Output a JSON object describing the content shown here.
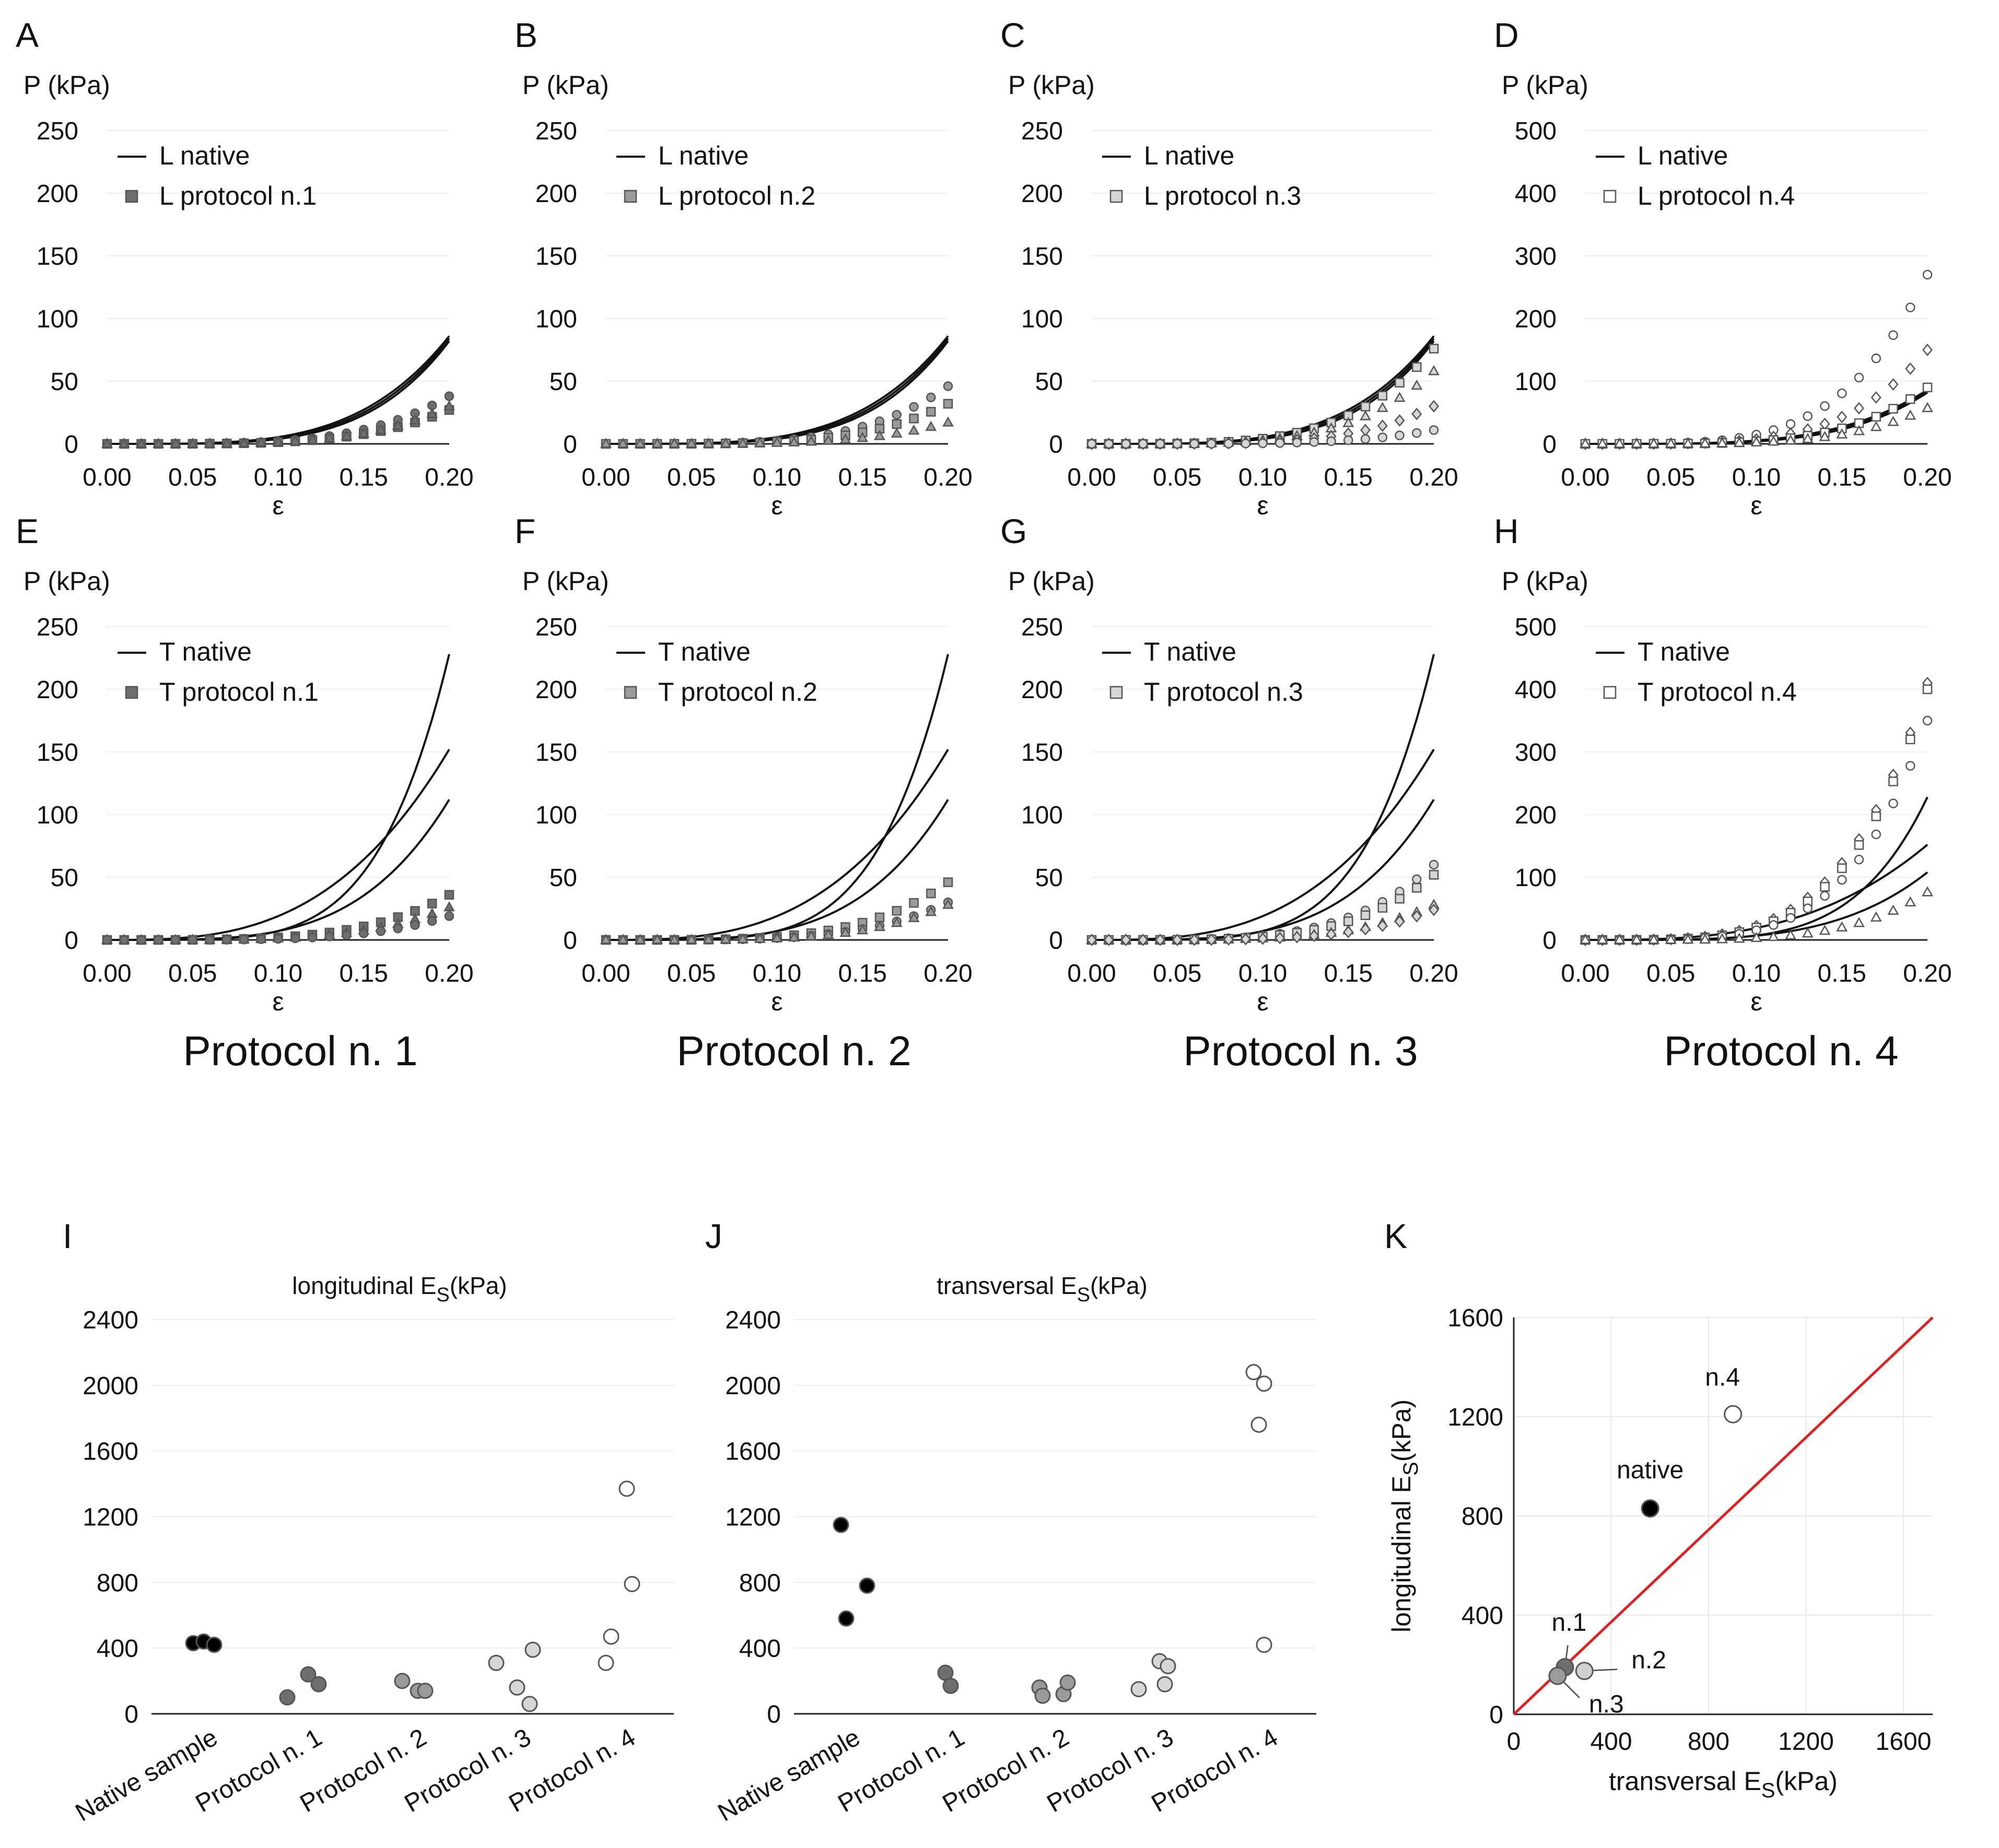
{
  "figure": {
    "protocol_labels": [
      "Protocol n. 1",
      "Protocol n. 2",
      "Protocol n. 3",
      "Protocol n. 4"
    ]
  },
  "chart_data": [
    {
      "id": "A",
      "type": "line",
      "panel_label": "A",
      "ylabel": "P (kPa)",
      "xlabel": "ε",
      "ylim": [
        0,
        250
      ],
      "yticks": [
        0,
        50,
        100,
        150,
        200,
        250
      ],
      "xlim": [
        0,
        0.2
      ],
      "xticks": [
        "0.00",
        "0.05",
        "0.10",
        "0.15",
        "0.20"
      ],
      "legend": [
        "L native",
        "L protocol n.1"
      ],
      "marker_fill": "#6f6f6f",
      "curves": [
        {
          "endpoint": 86,
          "power": 4
        },
        {
          "endpoint": 84,
          "power": 4.2
        },
        {
          "endpoint": 82,
          "power": 4.4
        }
      ],
      "point_series": [
        {
          "shape": "circle",
          "end": 38
        },
        {
          "shape": "square",
          "end": 27
        },
        {
          "shape": "triangle",
          "end": 30
        }
      ]
    },
    {
      "id": "B",
      "type": "line",
      "panel_label": "B",
      "ylabel": "P (kPa)",
      "xlabel": "ε",
      "ylim": [
        0,
        250
      ],
      "yticks": [
        0,
        50,
        100,
        150,
        200,
        250
      ],
      "xlim": [
        0,
        0.2
      ],
      "xticks": [
        "0.00",
        "0.05",
        "0.10",
        "0.15",
        "0.20"
      ],
      "legend": [
        "L native",
        "L protocol n.2"
      ],
      "marker_fill": "#9a9a9a",
      "curves": [
        {
          "endpoint": 86,
          "power": 4
        },
        {
          "endpoint": 84,
          "power": 4.2
        },
        {
          "endpoint": 82,
          "power": 4.4
        }
      ],
      "point_series": [
        {
          "shape": "circle",
          "end": 46
        },
        {
          "shape": "square",
          "end": 32
        },
        {
          "shape": "triangle",
          "end": 17
        }
      ]
    },
    {
      "id": "C",
      "type": "line",
      "panel_label": "C",
      "ylabel": "P (kPa)",
      "xlabel": "ε",
      "ylim": [
        0,
        250
      ],
      "yticks": [
        0,
        50,
        100,
        150,
        200,
        250
      ],
      "xlim": [
        0,
        0.2
      ],
      "xticks": [
        "0.00",
        "0.05",
        "0.10",
        "0.15",
        "0.20"
      ],
      "legend": [
        "L native",
        "L protocol n.3"
      ],
      "marker_fill": "#d6d6d6",
      "curves": [
        {
          "endpoint": 86,
          "power": 4
        },
        {
          "endpoint": 84,
          "power": 4.2
        },
        {
          "endpoint": 82,
          "power": 4.4
        }
      ],
      "point_series": [
        {
          "shape": "square",
          "end": 76
        },
        {
          "shape": "triangle",
          "end": 58
        },
        {
          "shape": "diamond",
          "end": 30
        },
        {
          "shape": "circle",
          "end": 11
        }
      ]
    },
    {
      "id": "D",
      "type": "line",
      "panel_label": "D",
      "ylabel": "P (kPa)",
      "xlabel": "ε",
      "ylim": [
        0,
        500
      ],
      "yticks": [
        0,
        100,
        200,
        300,
        400,
        500
      ],
      "xlim": [
        0,
        0.2
      ],
      "xticks": [
        "0.00",
        "0.05",
        "0.10",
        "0.15",
        "0.20"
      ],
      "legend": [
        "L native",
        "L protocol n.4"
      ],
      "marker_fill": "#ffffff",
      "curves": [
        {
          "endpoint": 86,
          "power": 4
        },
        {
          "endpoint": 84,
          "power": 4.2
        },
        {
          "endpoint": 82,
          "power": 4.4
        }
      ],
      "point_series": [
        {
          "shape": "circle",
          "end": 270
        },
        {
          "shape": "diamond",
          "end": 150
        },
        {
          "shape": "square",
          "end": 90
        },
        {
          "shape": "triangle",
          "end": 57
        }
      ]
    },
    {
      "id": "E",
      "type": "line",
      "panel_label": "E",
      "ylabel": "P (kPa)",
      "xlabel": "ε",
      "ylim": [
        0,
        250
      ],
      "yticks": [
        0,
        50,
        100,
        150,
        200,
        250
      ],
      "xlim": [
        0,
        0.2
      ],
      "xticks": [
        "0.00",
        "0.05",
        "0.10",
        "0.15",
        "0.20"
      ],
      "legend": [
        "T native",
        "T protocol n.1"
      ],
      "marker_fill": "#6f6f6f",
      "curves": [
        {
          "endpoint": 228,
          "power": 5
        },
        {
          "endpoint": 152,
          "power": 3
        },
        {
          "endpoint": 112,
          "power": 4
        }
      ],
      "point_series": [
        {
          "shape": "square",
          "end": 36
        },
        {
          "shape": "triangle",
          "end": 26
        },
        {
          "shape": "circle",
          "end": 19
        }
      ]
    },
    {
      "id": "F",
      "type": "line",
      "panel_label": "F",
      "ylabel": "P (kPa)",
      "xlabel": "ε",
      "ylim": [
        0,
        250
      ],
      "yticks": [
        0,
        50,
        100,
        150,
        200,
        250
      ],
      "xlim": [
        0,
        0.2
      ],
      "xticks": [
        "0.00",
        "0.05",
        "0.10",
        "0.15",
        "0.20"
      ],
      "legend": [
        "T native",
        "T protocol n.2"
      ],
      "marker_fill": "#9a9a9a",
      "curves": [
        {
          "endpoint": 228,
          "power": 5
        },
        {
          "endpoint": 152,
          "power": 3
        },
        {
          "endpoint": 112,
          "power": 4
        }
      ],
      "point_series": [
        {
          "shape": "square",
          "end": 46
        },
        {
          "shape": "circle",
          "end": 30
        },
        {
          "shape": "triangle",
          "end": 28
        }
      ]
    },
    {
      "id": "G",
      "type": "line",
      "panel_label": "G",
      "ylabel": "P (kPa)",
      "xlabel": "ε",
      "ylim": [
        0,
        250
      ],
      "yticks": [
        0,
        50,
        100,
        150,
        200,
        250
      ],
      "xlim": [
        0,
        0.2
      ],
      "xticks": [
        "0.00",
        "0.05",
        "0.10",
        "0.15",
        "0.20"
      ],
      "legend": [
        "T native",
        "T protocol n.3"
      ],
      "marker_fill": "#d6d6d6",
      "curves": [
        {
          "endpoint": 228,
          "power": 5
        },
        {
          "endpoint": 152,
          "power": 3
        },
        {
          "endpoint": 112,
          "power": 4
        }
      ],
      "point_series": [
        {
          "shape": "circle",
          "end": 60
        },
        {
          "shape": "square",
          "end": 52
        },
        {
          "shape": "triangle",
          "end": 28
        },
        {
          "shape": "diamond",
          "end": 24
        }
      ]
    },
    {
      "id": "H",
      "type": "line",
      "panel_label": "H",
      "ylabel": "P (kPa)",
      "xlabel": "ε",
      "ylim": [
        0,
        500
      ],
      "yticks": [
        0,
        100,
        200,
        300,
        400,
        500
      ],
      "xlim": [
        0,
        0.2
      ],
      "xticks": [
        "0.00",
        "0.05",
        "0.10",
        "0.15",
        "0.20"
      ],
      "legend": [
        "T native",
        "T protocol n.4"
      ],
      "marker_fill": "#ffffff",
      "curves": [
        {
          "endpoint": 228,
          "power": 5
        },
        {
          "endpoint": 152,
          "power": 3
        },
        {
          "endpoint": 108,
          "power": 4
        }
      ],
      "point_series": [
        {
          "shape": "diamond",
          "end": 410
        },
        {
          "shape": "square",
          "end": 400
        },
        {
          "shape": "circle",
          "end": 350
        },
        {
          "shape": "triangle",
          "end": 76
        }
      ]
    },
    {
      "id": "I",
      "type": "scatter",
      "panel_label": "I",
      "title_main": "longitudinal E",
      "title_sub": "S",
      "title_unit": "(kPa)",
      "ylim": [
        0,
        2400
      ],
      "yticks": [
        0,
        400,
        800,
        1200,
        1600,
        2000,
        2400
      ],
      "categories": [
        "Native sample",
        "Protocol n. 1",
        "Protocol n. 2",
        "Protocol n. 3",
        "Protocol n. 4"
      ],
      "colors": [
        "#000000",
        "#6f6f6f",
        "#9a9a9a",
        "#d6d6d6",
        "#ffffff"
      ],
      "groups": [
        [
          {
            "dx": -0.1,
            "y": 430
          },
          {
            "dx": 0.0,
            "y": 440
          },
          {
            "dx": 0.1,
            "y": 420
          }
        ],
        [
          {
            "dx": -0.2,
            "y": 100
          },
          {
            "dx": 0.0,
            "y": 240
          },
          {
            "dx": 0.1,
            "y": 180
          }
        ],
        [
          {
            "dx": -0.1,
            "y": 200
          },
          {
            "dx": 0.05,
            "y": 140
          },
          {
            "dx": 0.12,
            "y": 140
          }
        ],
        [
          {
            "dx": -0.2,
            "y": 310
          },
          {
            "dx": 0.0,
            "y": 160
          },
          {
            "dx": 0.15,
            "y": 390
          },
          {
            "dx": 0.12,
            "y": 60
          }
        ],
        [
          {
            "dx": -0.15,
            "y": 310
          },
          {
            "dx": -0.1,
            "y": 470
          },
          {
            "dx": 0.05,
            "y": 1370
          },
          {
            "dx": 0.1,
            "y": 790
          }
        ]
      ]
    },
    {
      "id": "J",
      "type": "scatter",
      "panel_label": "J",
      "title_main": "transversal E",
      "title_sub": "S",
      "title_unit": "(kPa)",
      "ylim": [
        0,
        2400
      ],
      "yticks": [
        0,
        400,
        800,
        1200,
        1600,
        2000,
        2400
      ],
      "categories": [
        "Native sample",
        "Protocol n. 1",
        "Protocol n. 2",
        "Protocol n. 3",
        "Protocol n. 4"
      ],
      "colors": [
        "#000000",
        "#6f6f6f",
        "#9a9a9a",
        "#d6d6d6",
        "#ffffff"
      ],
      "groups": [
        [
          {
            "dx": -0.05,
            "y": 1150
          },
          {
            "dx": 0.2,
            "y": 780
          },
          {
            "dx": 0.0,
            "y": 580
          }
        ],
        [
          {
            "dx": -0.05,
            "y": 250
          },
          {
            "dx": 0.0,
            "y": 170
          }
        ],
        [
          {
            "dx": -0.15,
            "y": 160
          },
          {
            "dx": -0.12,
            "y": 110
          },
          {
            "dx": 0.08,
            "y": 120
          },
          {
            "dx": 0.12,
            "y": 190
          }
        ],
        [
          {
            "dx": -0.2,
            "y": 150
          },
          {
            "dx": 0.0,
            "y": 320
          },
          {
            "dx": 0.08,
            "y": 290
          },
          {
            "dx": 0.05,
            "y": 180
          }
        ],
        [
          {
            "dx": -0.1,
            "y": 2080
          },
          {
            "dx": 0.0,
            "y": 2010
          },
          {
            "dx": -0.05,
            "y": 1760
          },
          {
            "dx": 0.0,
            "y": 420
          }
        ]
      ]
    },
    {
      "id": "K",
      "type": "scatter",
      "panel_label": "K",
      "xlabel_main": "transversal E",
      "ylabel_main": "longitudinal E",
      "sub": "S",
      "unit": "(kPa)",
      "xlim": [
        0,
        1720
      ],
      "ylim": [
        0,
        1600
      ],
      "xticks": [
        0,
        400,
        800,
        1200,
        1600
      ],
      "yticks": [
        0,
        400,
        800,
        1200,
        1600
      ],
      "identity_line_color": "#e02020",
      "points": [
        {
          "label": "native",
          "x": 560,
          "y": 830,
          "color": "#000000"
        },
        {
          "label": "n.1",
          "x": 210,
          "y": 190,
          "color": "#6f6f6f"
        },
        {
          "label": "n.2",
          "x": 290,
          "y": 175,
          "color": "#d0d0d0"
        },
        {
          "label": "n.3",
          "x": 180,
          "y": 155,
          "color": "#9a9a9a"
        },
        {
          "label": "n.4",
          "x": 900,
          "y": 1210,
          "color": "#ffffff"
        }
      ]
    }
  ]
}
